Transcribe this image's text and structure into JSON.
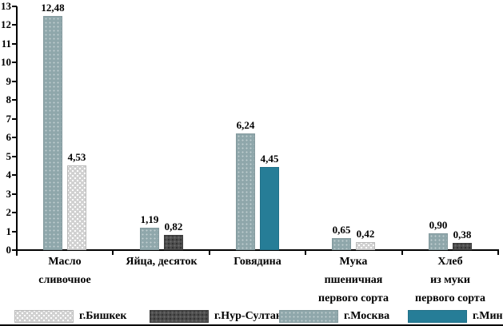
{
  "chart_data": {
    "type": "bar",
    "title": "",
    "xlabel": "",
    "ylabel": "",
    "ylim": [
      0,
      13
    ],
    "ytick_step": 1,
    "grid": false,
    "legend_position": "bottom",
    "decimal_separator": ",",
    "colors": {
      "bishkek": "#d1d1d1",
      "nursultan": "#4d4d4d",
      "moscow": "#8fa7ab",
      "minsk": "#267d97"
    },
    "categories": [
      {
        "label": "Масло сливочное",
        "label_lines": [
          "Масло",
          "сливочное"
        ]
      },
      {
        "label": "Яйца, десяток",
        "label_lines": [
          "Яйца, десяток"
        ]
      },
      {
        "label": "Говядина",
        "label_lines": [
          "Говядина"
        ]
      },
      {
        "label": "Мука пшеничная первого сорта",
        "label_lines": [
          "Мука",
          "пшеничная",
          "первого сорта"
        ]
      },
      {
        "label": "Хлеб из муки первого сорта",
        "label_lines": [
          "Хлеб",
          "из муки",
          "первого сорта"
        ]
      }
    ],
    "legend": [
      {
        "key": "bishkek",
        "name": "г.Бишкек"
      },
      {
        "key": "nursultan",
        "name": "г.Нур-Султан"
      },
      {
        "key": "moscow",
        "name": "г.Москва"
      },
      {
        "key": "minsk",
        "name": "г.Минск"
      }
    ],
    "series": [
      {
        "name": "г.Бишкек",
        "key": "bishkek",
        "values": [
          4.53,
          null,
          null,
          0.42,
          null
        ]
      },
      {
        "name": "г.Нур-Султан",
        "key": "nursultan",
        "values": [
          null,
          0.82,
          null,
          null,
          0.38
        ]
      },
      {
        "name": "г.Москва",
        "key": "moscow",
        "values": [
          12.48,
          1.19,
          6.24,
          0.65,
          0.9
        ]
      },
      {
        "name": "г.Минск",
        "key": "minsk",
        "values": [
          null,
          null,
          4.45,
          null,
          null
        ]
      }
    ],
    "bars": [
      {
        "category": 0,
        "slot": 0,
        "series": "moscow",
        "value": 12.48,
        "label": "12,48"
      },
      {
        "category": 0,
        "slot": 1,
        "series": "bishkek",
        "value": 4.53,
        "label": "4,53"
      },
      {
        "category": 1,
        "slot": 0,
        "series": "moscow",
        "value": 1.19,
        "label": "1,19"
      },
      {
        "category": 1,
        "slot": 1,
        "series": "nursultan",
        "value": 0.82,
        "label": "0,82"
      },
      {
        "category": 2,
        "slot": 0,
        "series": "moscow",
        "value": 6.24,
        "label": "6,24"
      },
      {
        "category": 2,
        "slot": 1,
        "series": "minsk",
        "value": 4.45,
        "label": "4,45"
      },
      {
        "category": 3,
        "slot": 0,
        "series": "moscow",
        "value": 0.65,
        "label": "0,65"
      },
      {
        "category": 3,
        "slot": 1,
        "series": "bishkek",
        "value": 0.42,
        "label": "0,42"
      },
      {
        "category": 4,
        "slot": 0,
        "series": "moscow",
        "value": 0.9,
        "label": "0,90"
      },
      {
        "category": 4,
        "slot": 1,
        "series": "nursultan",
        "value": 0.38,
        "label": "0,38"
      }
    ]
  }
}
